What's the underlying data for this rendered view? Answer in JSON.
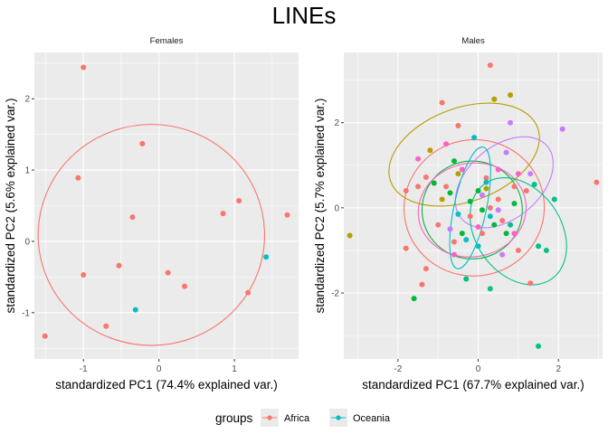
{
  "chart_data": {
    "type": "scatter",
    "title": "LINEs",
    "legend": {
      "title": "groups",
      "position": "bottom",
      "entries": [
        {
          "name": "Africa",
          "color": "#F8766D"
        },
        {
          "name": "Oceania",
          "color": "#00BFC4"
        }
      ]
    },
    "panels": [
      {
        "strip": "Females",
        "xlabel": "standardized PC1 (74.4% explained var.)",
        "ylabel": "standardized PC2 (5.6% explained var.)",
        "xlim": [
          -1.65,
          1.85
        ],
        "ylim": [
          -1.65,
          2.65
        ],
        "xticks": [
          -1,
          0,
          1
        ],
        "yticks": [
          -1,
          0,
          1,
          2
        ],
        "points": [
          {
            "x": -1.0,
            "y": 2.44,
            "group": "Africa"
          },
          {
            "x": -1.07,
            "y": 0.89,
            "group": "Africa"
          },
          {
            "x": -0.22,
            "y": 1.37,
            "group": "Africa"
          },
          {
            "x": -0.35,
            "y": 0.34,
            "group": "Africa"
          },
          {
            "x": -0.53,
            "y": -0.34,
            "group": "Africa"
          },
          {
            "x": -1.0,
            "y": -0.47,
            "group": "Africa"
          },
          {
            "x": 0.12,
            "y": -0.44,
            "group": "Africa"
          },
          {
            "x": 0.34,
            "y": -0.63,
            "group": "Africa"
          },
          {
            "x": -0.7,
            "y": -1.19,
            "group": "Africa"
          },
          {
            "x": -1.51,
            "y": -1.33,
            "group": "Africa"
          },
          {
            "x": 0.85,
            "y": 0.39,
            "group": "Africa"
          },
          {
            "x": 1.06,
            "y": 0.57,
            "group": "Africa"
          },
          {
            "x": 1.7,
            "y": 0.37,
            "group": "Africa"
          },
          {
            "x": 1.18,
            "y": -0.72,
            "group": "Africa"
          },
          {
            "x": 1.42,
            "y": -0.22,
            "group": "Oceania"
          },
          {
            "x": -0.31,
            "y": -0.96,
            "group": "Oceania"
          }
        ],
        "ellipses": [
          {
            "group": "Africa",
            "cx": -0.1,
            "cy": 0.09,
            "rx": 1.5,
            "ry": 1.55,
            "angle": 0
          }
        ]
      },
      {
        "strip": "Males",
        "xlabel": "standardized PC1 (67.7% explained var.)",
        "ylabel": "standardized PC2 (5.7% explained var.)",
        "xlim": [
          -3.35,
          3.1
        ],
        "ylim": [
          -3.55,
          3.65
        ],
        "xticks": [
          -2,
          0,
          2
        ],
        "yticks": [
          -2,
          0,
          2
        ],
        "points": [
          {
            "x": 0.3,
            "y": 3.35,
            "color": "#F8766D"
          },
          {
            "x": -0.9,
            "y": 2.47,
            "color": "#F8766D"
          },
          {
            "x": -0.5,
            "y": 1.93,
            "color": "#F8766D"
          },
          {
            "x": -1.3,
            "y": 0.72,
            "color": "#F8766D"
          },
          {
            "x": -1.5,
            "y": 0.5,
            "color": "#F8766D"
          },
          {
            "x": -0.8,
            "y": 0.5,
            "color": "#F8766D"
          },
          {
            "x": -1.8,
            "y": 0.4,
            "color": "#F8766D"
          },
          {
            "x": -1.0,
            "y": -0.4,
            "color": "#F8766D"
          },
          {
            "x": -1.8,
            "y": -0.95,
            "color": "#F8766D"
          },
          {
            "x": -1.3,
            "y": -1.43,
            "color": "#F8766D"
          },
          {
            "x": -1.4,
            "y": -1.8,
            "color": "#F8766D"
          },
          {
            "x": -0.6,
            "y": -0.8,
            "color": "#F8766D"
          },
          {
            "x": 0.1,
            "y": -0.6,
            "color": "#F8766D"
          },
          {
            "x": 0.5,
            "y": 0.2,
            "color": "#F8766D"
          },
          {
            "x": 0.9,
            "y": 0.5,
            "color": "#F8766D"
          },
          {
            "x": 1.2,
            "y": 0.4,
            "color": "#F8766D"
          },
          {
            "x": 1.3,
            "y": -1.77,
            "color": "#F8766D"
          },
          {
            "x": 1.0,
            "y": -1.0,
            "color": "#F8766D"
          },
          {
            "x": 2.95,
            "y": 0.6,
            "color": "#F8766D"
          },
          {
            "x": 0.2,
            "y": 0.7,
            "color": "#F8766D"
          },
          {
            "x": -0.2,
            "y": -0.2,
            "color": "#F8766D"
          },
          {
            "x": 0.3,
            "y": 0.0,
            "color": "#F8766D"
          },
          {
            "x": 0.6,
            "y": -0.3,
            "color": "#F8766D"
          },
          {
            "x": -3.2,
            "y": -0.65,
            "color": "#B79F00"
          },
          {
            "x": -1.2,
            "y": 1.35,
            "color": "#B79F00"
          },
          {
            "x": -0.5,
            "y": 0.8,
            "color": "#B79F00"
          },
          {
            "x": 0.4,
            "y": 2.55,
            "color": "#B79F00"
          },
          {
            "x": 0.8,
            "y": 2.65,
            "color": "#B79F00"
          },
          {
            "x": -0.9,
            "y": 0.2,
            "color": "#B79F00"
          },
          {
            "x": 0.2,
            "y": 0.45,
            "color": "#B79F00"
          },
          {
            "x": -1.6,
            "y": -2.13,
            "color": "#00BA38"
          },
          {
            "x": -1.1,
            "y": 0.58,
            "color": "#00BA38"
          },
          {
            "x": -0.7,
            "y": 0.35,
            "color": "#00BA38"
          },
          {
            "x": -0.2,
            "y": 0.15,
            "color": "#00BA38"
          },
          {
            "x": 0.1,
            "y": -0.05,
            "color": "#00BA38"
          },
          {
            "x": 0.4,
            "y": -0.4,
            "color": "#00BA38"
          },
          {
            "x": -0.4,
            "y": -0.6,
            "color": "#00BA38"
          },
          {
            "x": 0.9,
            "y": 0.1,
            "color": "#00BA38"
          },
          {
            "x": 0.0,
            "y": 0.4,
            "color": "#00BA38"
          },
          {
            "x": -0.6,
            "y": 1.1,
            "color": "#00BA38"
          },
          {
            "x": 0.7,
            "y": -0.6,
            "color": "#00BA38"
          },
          {
            "x": -0.3,
            "y": -1.67,
            "color": "#00C08B"
          },
          {
            "x": 0.3,
            "y": -1.9,
            "color": "#00C08B"
          },
          {
            "x": 1.5,
            "y": -0.9,
            "color": "#00C08B"
          },
          {
            "x": 1.7,
            "y": -1.0,
            "color": "#00C08B"
          },
          {
            "x": 1.9,
            "y": 0.2,
            "color": "#00C08B"
          },
          {
            "x": 1.4,
            "y": 0.55,
            "color": "#00C08B"
          },
          {
            "x": 0.8,
            "y": -0.4,
            "color": "#00C08B"
          },
          {
            "x": 1.5,
            "y": -3.25,
            "color": "#00C08B"
          },
          {
            "x": 0.2,
            "y": 0.6,
            "color": "#00BFC4"
          },
          {
            "x": -0.1,
            "y": 1.65,
            "color": "#00BFC4"
          },
          {
            "x": -0.5,
            "y": -0.15,
            "color": "#00BFC4"
          },
          {
            "x": -0.3,
            "y": -0.75,
            "color": "#00BFC4"
          },
          {
            "x": 0.0,
            "y": -0.9,
            "color": "#00BFC4"
          },
          {
            "x": 0.3,
            "y": -0.2,
            "color": "#00BFC4"
          },
          {
            "x": 0.8,
            "y": 2.0,
            "color": "#C77CFF"
          },
          {
            "x": 2.1,
            "y": 1.85,
            "color": "#C77CFF"
          },
          {
            "x": 0.7,
            "y": 1.3,
            "color": "#C77CFF"
          },
          {
            "x": 1.3,
            "y": 0.8,
            "color": "#C77CFF"
          },
          {
            "x": 0.5,
            "y": -0.05,
            "color": "#C77CFF"
          },
          {
            "x": 0.1,
            "y": 0.3,
            "color": "#C77CFF"
          },
          {
            "x": -0.7,
            "y": -0.5,
            "color": "#C77CFF"
          },
          {
            "x": 0.6,
            "y": -1.1,
            "color": "#C77CFF"
          },
          {
            "x": -0.8,
            "y": 1.5,
            "color": "#FF61C3"
          },
          {
            "x": -1.5,
            "y": 1.15,
            "color": "#FF61C3"
          },
          {
            "x": -0.4,
            "y": 0.9,
            "color": "#FF61C3"
          },
          {
            "x": 0.0,
            "y": -0.45,
            "color": "#FF61C3"
          },
          {
            "x": 0.9,
            "y": -0.6,
            "color": "#FF61C3"
          },
          {
            "x": 1.0,
            "y": 0.8,
            "color": "#FF61C3"
          },
          {
            "x": -0.6,
            "y": -1.1,
            "color": "#FF61C3"
          },
          {
            "x": 0.5,
            "y": 0.9,
            "color": "#FF61C3"
          }
        ],
        "ellipses": [
          {
            "color": "#B79F00",
            "cx": -0.35,
            "cy": 1.25,
            "rx": 1.95,
            "ry": 1.1,
            "angle": 20
          },
          {
            "color": "#F8766D",
            "cx": -0.1,
            "cy": 0.0,
            "rx": 1.75,
            "ry": 1.6,
            "angle": 10
          },
          {
            "color": "#00BA38",
            "cx": -0.15,
            "cy": -0.05,
            "rx": 1.25,
            "ry": 1.15,
            "angle": 0
          },
          {
            "color": "#FF61C3",
            "cx": -0.15,
            "cy": -0.05,
            "rx": 1.35,
            "ry": 1.1,
            "angle": 10
          },
          {
            "color": "#C77CFF",
            "cx": 0.65,
            "cy": 0.6,
            "rx": 1.4,
            "ry": 0.85,
            "angle": 40
          },
          {
            "color": "#00C08B",
            "cx": 1.0,
            "cy": -0.55,
            "rx": 1.45,
            "ry": 1.0,
            "angle": -55
          },
          {
            "color": "#00BFC4",
            "cx": -0.2,
            "cy": 0.0,
            "rx": 1.55,
            "ry": 0.38,
            "angle": 78
          }
        ]
      }
    ]
  }
}
